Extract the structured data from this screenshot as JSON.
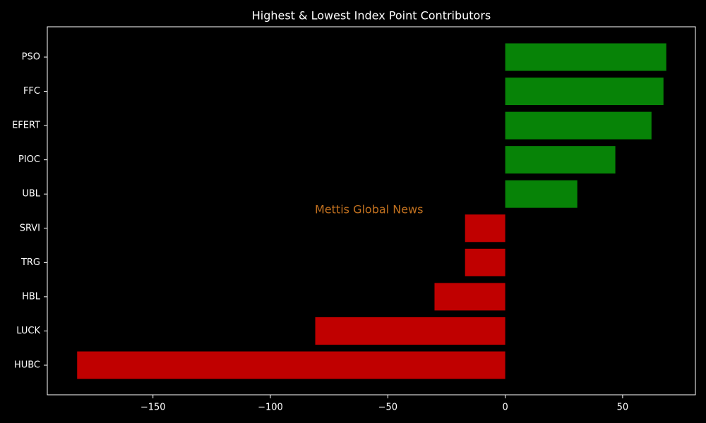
{
  "chart_data": {
    "type": "bar",
    "orientation": "horizontal",
    "title": "Highest & Lowest Index Point Contributors",
    "annotation": "Mettis Global News",
    "annotation_color": "#c0701f",
    "categories": [
      "PSO",
      "FFC",
      "EFERT",
      "PIOC",
      "UBL",
      "SRVI",
      "TRG",
      "HBL",
      "LUCK",
      "HUBC"
    ],
    "values": [
      68.6,
      67.4,
      62.3,
      46.9,
      30.7,
      -17.1,
      -17.1,
      -30.1,
      -80.9,
      -182.3
    ],
    "colors": [
      "#078307",
      "#078307",
      "#078307",
      "#078307",
      "#078307",
      "#c00000",
      "#c00000",
      "#c00000",
      "#c00000",
      "#c00000"
    ],
    "xlim": [
      -195,
      81
    ],
    "xticks": [
      {
        "value": -150,
        "label": "−150"
      },
      {
        "value": -100,
        "label": "−100"
      },
      {
        "value": -50,
        "label": "−50"
      },
      0,
      50
    ],
    "grid": false
  }
}
